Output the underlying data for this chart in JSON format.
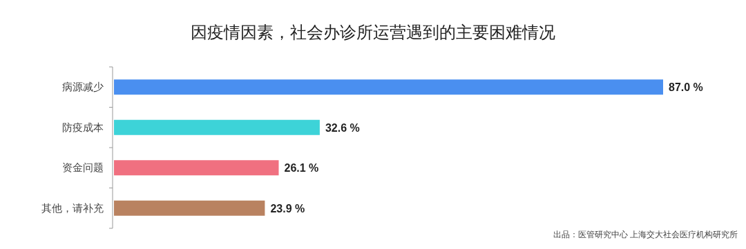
{
  "chart_data": {
    "type": "bar",
    "orientation": "horizontal",
    "title": "因疫情因素，社会办诊所运营遇到的主要困难情况",
    "categories": [
      "病源减少",
      "防疫成本",
      "资金问题",
      "其他，请补充"
    ],
    "values": [
      87.0,
      32.6,
      26.1,
      23.9
    ],
    "colors": [
      "#4a8ff0",
      "#3dd3d8",
      "#f07080",
      "#b98260"
    ],
    "value_labels": [
      "87.0 %",
      "32.6 %",
      "26.1 %",
      "23.9 %"
    ],
    "annotations": [
      "出品：医管研究中心  上海交大社会医疗机构研究所"
    ]
  }
}
